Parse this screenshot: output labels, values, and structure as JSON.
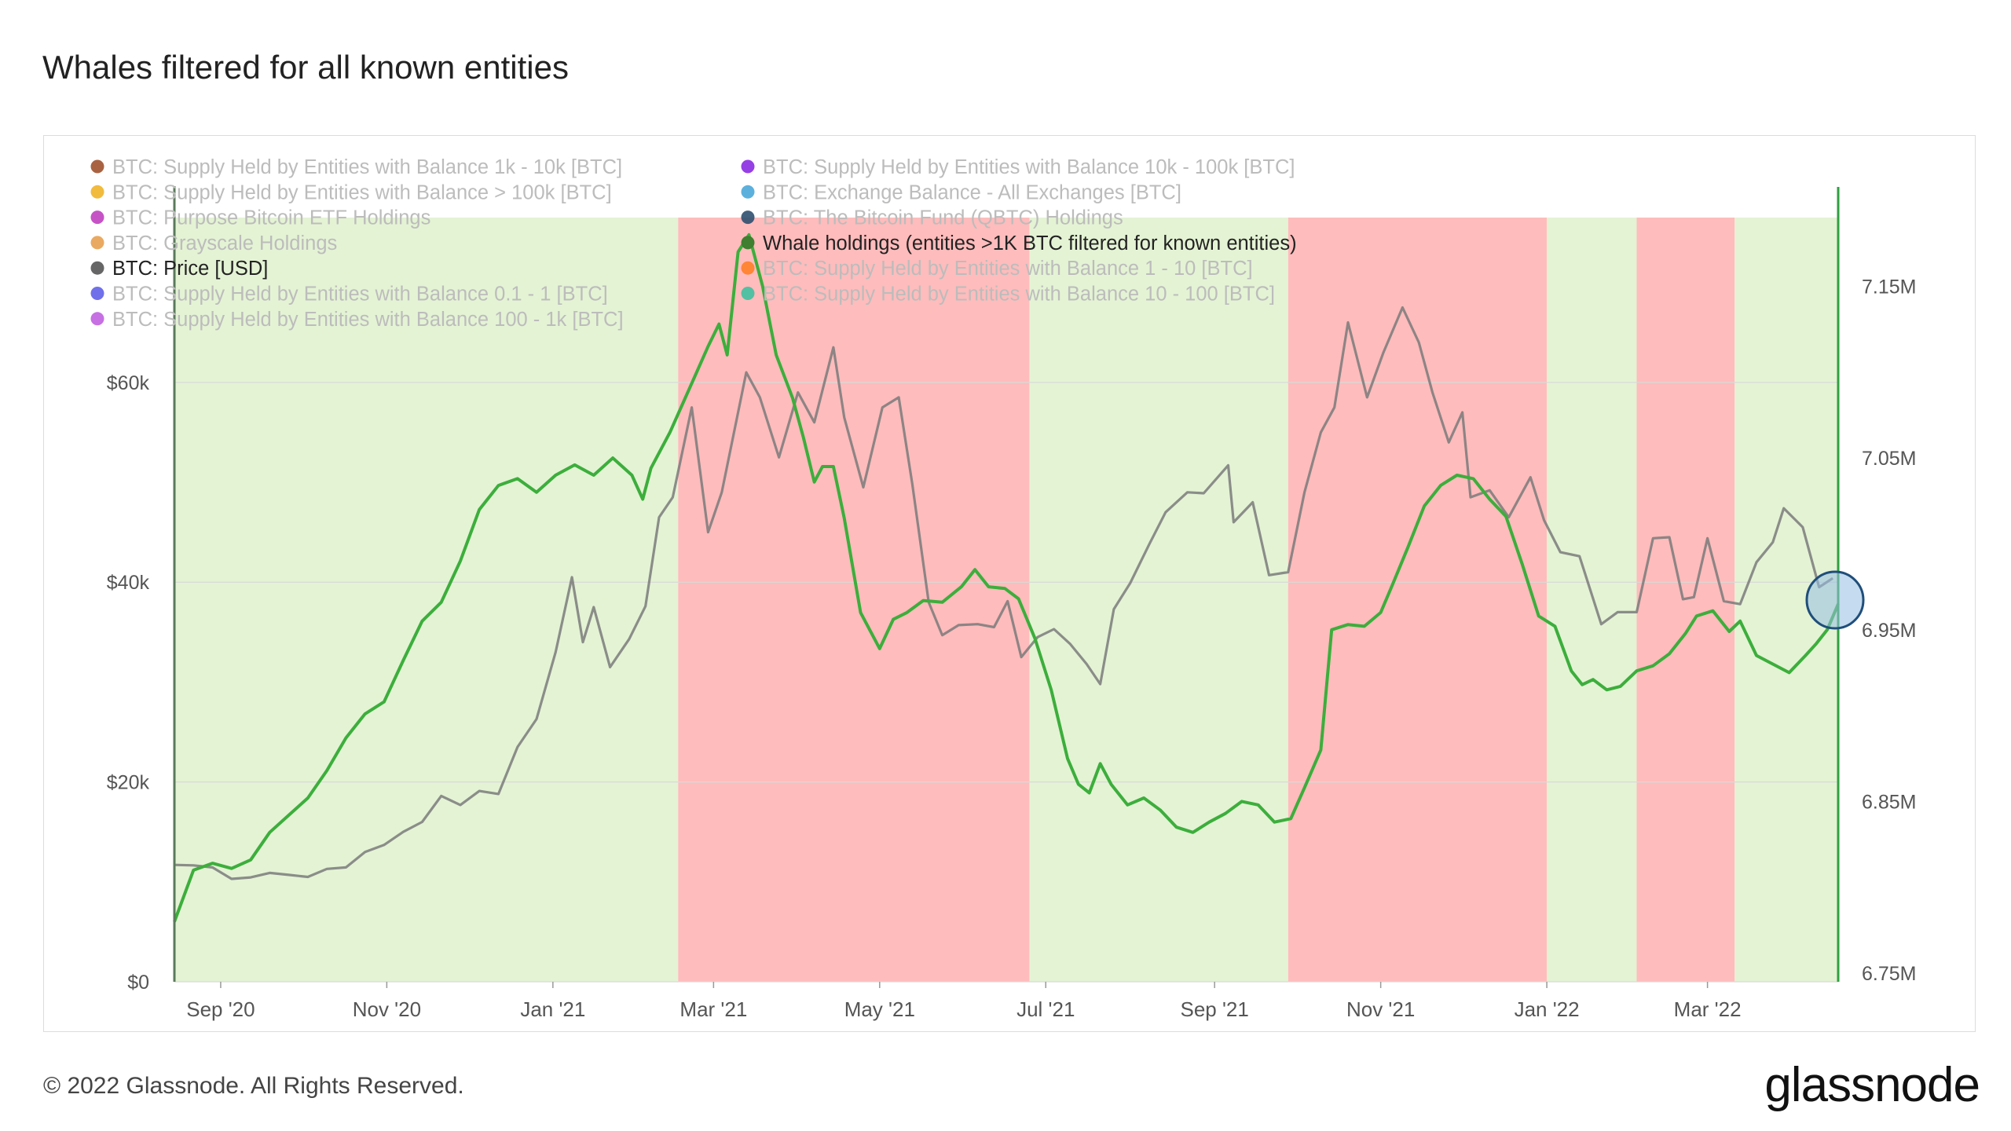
{
  "title": "Whales filtered for all known entities",
  "footer": "© 2022 Glassnode. All Rights Reserved.",
  "brand": "glassnode",
  "watermark": "glassnode",
  "chart_data": {
    "type": "line",
    "legend_placement": "top-left",
    "legend": [
      {
        "label": "BTC: Supply Held by Entities with Balance 1k - 10k [BTC]",
        "color": "#a0522d",
        "active": false
      },
      {
        "label": "BTC: Supply Held by Entities with Balance 10k - 100k [BTC]",
        "color": "#8a2be2",
        "active": false
      },
      {
        "label": "BTC: Supply Held by Entities with Balance > 100k [BTC]",
        "color": "#f0b429",
        "active": false
      },
      {
        "label": "BTC: Exchange Balance - All Exchanges [BTC]",
        "color": "#4aa8d8",
        "active": false
      },
      {
        "label": "BTC: Purpose Bitcoin ETF Holdings",
        "color": "#c040c0",
        "active": false
      },
      {
        "label": "BTC: The Bitcoin Fund (QBTC) Holdings",
        "color": "#2f4f6f",
        "active": false
      },
      {
        "label": "BTC: Grayscale Holdings",
        "color": "#e8a050",
        "active": false
      },
      {
        "label": "Whale holdings (entities >1K BTC filtered for known entities)",
        "color": "#3f7f2f",
        "active": true
      },
      {
        "label": "BTC: Price [USD]",
        "color": "#666666",
        "active": true
      },
      {
        "label": "BTC: Supply Held by Entities with Balance 1 - 10 [BTC]",
        "color": "#ff7f27",
        "active": false
      },
      {
        "label": "BTC: Supply Held by Entities with Balance 0.1 - 1 [BTC]",
        "color": "#6060e8",
        "active": false
      },
      {
        "label": "BTC: Supply Held by Entities with Balance 10 - 100 [BTC]",
        "color": "#40c0a0",
        "active": false
      },
      {
        "label": "BTC: Supply Held by Entities with Balance 100 - 1k [BTC]",
        "color": "#c060e0",
        "active": false
      }
    ],
    "x_ticks": [
      "Sep '20",
      "Nov '20",
      "Jan '21",
      "Mar '21",
      "May '21",
      "Jul '21",
      "Sep '21",
      "Nov '21",
      "Jan '22",
      "Mar '22"
    ],
    "x_tick_dates": [
      "2020-09-01",
      "2020-11-01",
      "2021-01-01",
      "2021-03-01",
      "2021-05-01",
      "2021-07-01",
      "2021-09-01",
      "2021-11-01",
      "2022-01-01",
      "2022-03-01"
    ],
    "x_range": [
      "2020-08-15",
      "2022-04-18"
    ],
    "y_left": {
      "ticks": [
        "$0",
        "$20k",
        "$40k",
        "$60k"
      ],
      "values": [
        0,
        20000,
        40000,
        60000
      ],
      "range": [
        0,
        76500
      ]
    },
    "y_right": {
      "ticks": [
        "6.75M",
        "6.85M",
        "6.95M",
        "7.05M",
        "7.15M"
      ],
      "values": [
        6750000,
        6850000,
        6950000,
        7050000,
        7150000
      ],
      "range": [
        6745000,
        7190000
      ]
    },
    "regimes": [
      {
        "from": "2020-08-15",
        "to": "2021-02-16",
        "trend": "accumulation",
        "color": "#e4f3d4"
      },
      {
        "from": "2021-02-16",
        "to": "2021-06-25",
        "trend": "distribution",
        "color": "#ffbcbc"
      },
      {
        "from": "2021-06-25",
        "to": "2021-09-28",
        "trend": "accumulation",
        "color": "#e4f3d4"
      },
      {
        "from": "2021-09-28",
        "to": "2022-01-01",
        "trend": "distribution",
        "color": "#ffbcbc"
      },
      {
        "from": "2022-01-01",
        "to": "2022-02-03",
        "trend": "accumulation",
        "color": "#e4f3d4"
      },
      {
        "from": "2022-02-03",
        "to": "2022-03-11",
        "trend": "distribution",
        "color": "#ffbcbc"
      },
      {
        "from": "2022-03-11",
        "to": "2022-04-18",
        "trend": "accumulation",
        "color": "#e4f3d4"
      }
    ],
    "series": [
      {
        "name": "Whale holdings (entities >1K BTC filtered for known entities)",
        "axis": "right",
        "color": "#3cae3c",
        "points": [
          [
            "2020-08-15",
            6780000
          ],
          [
            "2020-08-22",
            6810000
          ],
          [
            "2020-08-29",
            6814000
          ],
          [
            "2020-09-05",
            6811000
          ],
          [
            "2020-09-12",
            6816000
          ],
          [
            "2020-09-19",
            6832000
          ],
          [
            "2020-09-26",
            6842000
          ],
          [
            "2020-10-03",
            6852000
          ],
          [
            "2020-10-10",
            6868000
          ],
          [
            "2020-10-17",
            6887000
          ],
          [
            "2020-10-24",
            6901000
          ],
          [
            "2020-10-31",
            6908000
          ],
          [
            "2020-11-07",
            6932000
          ],
          [
            "2020-11-14",
            6955000
          ],
          [
            "2020-11-21",
            6966000
          ],
          [
            "2020-11-28",
            6990000
          ],
          [
            "2020-12-05",
            7020000
          ],
          [
            "2020-12-12",
            7034000
          ],
          [
            "2020-12-19",
            7038000
          ],
          [
            "2020-12-26",
            7030000
          ],
          [
            "2021-01-02",
            7040000
          ],
          [
            "2021-01-09",
            7046000
          ],
          [
            "2021-01-16",
            7040000
          ],
          [
            "2021-01-23",
            7050000
          ],
          [
            "2021-01-30",
            7040000
          ],
          [
            "2021-02-03",
            7026000
          ],
          [
            "2021-02-06",
            7044000
          ],
          [
            "2021-02-13",
            7065000
          ],
          [
            "2021-02-20",
            7090000
          ],
          [
            "2021-02-27",
            7115000
          ],
          [
            "2021-03-03",
            7128000
          ],
          [
            "2021-03-06",
            7110000
          ],
          [
            "2021-03-10",
            7170000
          ],
          [
            "2021-03-14",
            7180000
          ],
          [
            "2021-03-19",
            7150000
          ],
          [
            "2021-03-24",
            7110000
          ],
          [
            "2021-03-30",
            7085000
          ],
          [
            "2021-04-03",
            7062000
          ],
          [
            "2021-04-07",
            7036000
          ],
          [
            "2021-04-10",
            7045000
          ],
          [
            "2021-04-14",
            7045000
          ],
          [
            "2021-04-18",
            7015000
          ],
          [
            "2021-04-24",
            6960000
          ],
          [
            "2021-05-01",
            6939000
          ],
          [
            "2021-05-06",
            6956000
          ],
          [
            "2021-05-11",
            6960000
          ],
          [
            "2021-05-17",
            6967000
          ],
          [
            "2021-05-24",
            6966000
          ],
          [
            "2021-05-31",
            6975000
          ],
          [
            "2021-06-05",
            6985000
          ],
          [
            "2021-06-10",
            6975000
          ],
          [
            "2021-06-16",
            6974000
          ],
          [
            "2021-06-21",
            6968000
          ],
          [
            "2021-06-27",
            6945000
          ],
          [
            "2021-07-03",
            6915000
          ],
          [
            "2021-07-09",
            6875000
          ],
          [
            "2021-07-13",
            6860000
          ],
          [
            "2021-07-17",
            6855000
          ],
          [
            "2021-07-21",
            6872000
          ],
          [
            "2021-07-25",
            6860000
          ],
          [
            "2021-07-31",
            6848000
          ],
          [
            "2021-08-06",
            6852000
          ],
          [
            "2021-08-12",
            6845000
          ],
          [
            "2021-08-18",
            6835000
          ],
          [
            "2021-08-24",
            6832000
          ],
          [
            "2021-08-30",
            6838000
          ],
          [
            "2021-09-05",
            6843000
          ],
          [
            "2021-09-11",
            6850000
          ],
          [
            "2021-09-17",
            6848000
          ],
          [
            "2021-09-23",
            6838000
          ],
          [
            "2021-09-29",
            6840000
          ],
          [
            "2021-10-04",
            6858000
          ],
          [
            "2021-10-10",
            6880000
          ],
          [
            "2021-10-14",
            6950000
          ],
          [
            "2021-10-20",
            6953000
          ],
          [
            "2021-10-26",
            6952000
          ],
          [
            "2021-11-01",
            6960000
          ],
          [
            "2021-11-05",
            6975000
          ],
          [
            "2021-11-11",
            6998000
          ],
          [
            "2021-11-17",
            7022000
          ],
          [
            "2021-11-23",
            7034000
          ],
          [
            "2021-11-29",
            7040000
          ],
          [
            "2021-12-05",
            7038000
          ],
          [
            "2021-12-11",
            7026000
          ],
          [
            "2021-12-17",
            7016000
          ],
          [
            "2021-12-23",
            6988000
          ],
          [
            "2021-12-29",
            6958000
          ],
          [
            "2022-01-04",
            6952000
          ],
          [
            "2022-01-10",
            6926000
          ],
          [
            "2022-01-14",
            6918000
          ],
          [
            "2022-01-18",
            6921000
          ],
          [
            "2022-01-23",
            6915000
          ],
          [
            "2022-01-28",
            6917000
          ],
          [
            "2022-02-03",
            6926000
          ],
          [
            "2022-02-09",
            6929000
          ],
          [
            "2022-02-15",
            6936000
          ],
          [
            "2022-02-21",
            6948000
          ],
          [
            "2022-02-25",
            6958000
          ],
          [
            "2022-03-03",
            6961000
          ],
          [
            "2022-03-09",
            6949000
          ],
          [
            "2022-03-13",
            6955000
          ],
          [
            "2022-03-19",
            6935000
          ],
          [
            "2022-03-25",
            6930000
          ],
          [
            "2022-03-31",
            6925000
          ],
          [
            "2022-04-06",
            6935000
          ],
          [
            "2022-04-10",
            6942000
          ],
          [
            "2022-04-14",
            6950000
          ],
          [
            "2022-04-18",
            6965000
          ]
        ]
      },
      {
        "name": "BTC: Price [USD]",
        "axis": "left",
        "color": "#7a7a7a",
        "points": [
          [
            "2020-08-15",
            11700
          ],
          [
            "2020-08-22",
            11650
          ],
          [
            "2020-08-29",
            11450
          ],
          [
            "2020-09-05",
            10300
          ],
          [
            "2020-09-12",
            10450
          ],
          [
            "2020-09-19",
            10900
          ],
          [
            "2020-09-26",
            10700
          ],
          [
            "2020-10-03",
            10500
          ],
          [
            "2020-10-10",
            11300
          ],
          [
            "2020-10-17",
            11450
          ],
          [
            "2020-10-24",
            13000
          ],
          [
            "2020-10-31",
            13700
          ],
          [
            "2020-11-07",
            15000
          ],
          [
            "2020-11-14",
            16000
          ],
          [
            "2020-11-21",
            18600
          ],
          [
            "2020-11-28",
            17700
          ],
          [
            "2020-12-05",
            19100
          ],
          [
            "2020-12-12",
            18800
          ],
          [
            "2020-12-19",
            23500
          ],
          [
            "2020-12-26",
            26300
          ],
          [
            "2021-01-02",
            33000
          ],
          [
            "2021-01-08",
            40500
          ],
          [
            "2021-01-12",
            34000
          ],
          [
            "2021-01-16",
            37500
          ],
          [
            "2021-01-22",
            31500
          ],
          [
            "2021-01-29",
            34300
          ],
          [
            "2021-02-04",
            37600
          ],
          [
            "2021-02-09",
            46500
          ],
          [
            "2021-02-14",
            48500
          ],
          [
            "2021-02-21",
            57500
          ],
          [
            "2021-02-27",
            45000
          ],
          [
            "2021-03-04",
            49000
          ],
          [
            "2021-03-13",
            61000
          ],
          [
            "2021-03-18",
            58500
          ],
          [
            "2021-03-25",
            52500
          ],
          [
            "2021-04-01",
            59000
          ],
          [
            "2021-04-07",
            56000
          ],
          [
            "2021-04-14",
            63500
          ],
          [
            "2021-04-18",
            56500
          ],
          [
            "2021-04-25",
            49500
          ],
          [
            "2021-05-02",
            57500
          ],
          [
            "2021-05-08",
            58500
          ],
          [
            "2021-05-13",
            49800
          ],
          [
            "2021-05-19",
            38000
          ],
          [
            "2021-05-24",
            34700
          ],
          [
            "2021-05-30",
            35700
          ],
          [
            "2021-06-06",
            35800
          ],
          [
            "2021-06-12",
            35500
          ],
          [
            "2021-06-17",
            38100
          ],
          [
            "2021-06-22",
            32500
          ],
          [
            "2021-06-28",
            34500
          ],
          [
            "2021-07-04",
            35300
          ],
          [
            "2021-07-10",
            33800
          ],
          [
            "2021-07-16",
            31800
          ],
          [
            "2021-07-21",
            29800
          ],
          [
            "2021-07-26",
            37300
          ],
          [
            "2021-08-01",
            39900
          ],
          [
            "2021-08-08",
            43800
          ],
          [
            "2021-08-14",
            47000
          ],
          [
            "2021-08-22",
            49000
          ],
          [
            "2021-08-28",
            48900
          ],
          [
            "2021-09-06",
            51700
          ],
          [
            "2021-09-08",
            46000
          ],
          [
            "2021-09-15",
            48000
          ],
          [
            "2021-09-21",
            40700
          ],
          [
            "2021-09-28",
            41000
          ],
          [
            "2021-10-04",
            49000
          ],
          [
            "2021-10-10",
            55000
          ],
          [
            "2021-10-15",
            57500
          ],
          [
            "2021-10-20",
            66000
          ],
          [
            "2021-10-27",
            58500
          ],
          [
            "2021-11-02",
            63000
          ],
          [
            "2021-11-09",
            67500
          ],
          [
            "2021-11-15",
            64000
          ],
          [
            "2021-11-20",
            59000
          ],
          [
            "2021-11-26",
            54000
          ],
          [
            "2021-12-01",
            57000
          ],
          [
            "2021-12-04",
            48500
          ],
          [
            "2021-12-11",
            49200
          ],
          [
            "2021-12-18",
            46500
          ],
          [
            "2021-12-26",
            50500
          ],
          [
            "2021-12-31",
            46200
          ],
          [
            "2022-01-06",
            43000
          ],
          [
            "2022-01-13",
            42600
          ],
          [
            "2022-01-21",
            35800
          ],
          [
            "2022-01-27",
            37000
          ],
          [
            "2022-02-03",
            37000
          ],
          [
            "2022-02-09",
            44400
          ],
          [
            "2022-02-15",
            44500
          ],
          [
            "2022-02-20",
            38300
          ],
          [
            "2022-02-24",
            38500
          ],
          [
            "2022-03-01",
            44400
          ],
          [
            "2022-03-07",
            38100
          ],
          [
            "2022-03-13",
            37800
          ],
          [
            "2022-03-19",
            42000
          ],
          [
            "2022-03-25",
            44000
          ],
          [
            "2022-03-29",
            47400
          ],
          [
            "2022-04-05",
            45500
          ],
          [
            "2022-04-11",
            39500
          ],
          [
            "2022-04-16",
            40400
          ]
        ]
      }
    ],
    "highlight_date": "2022-04-18"
  }
}
